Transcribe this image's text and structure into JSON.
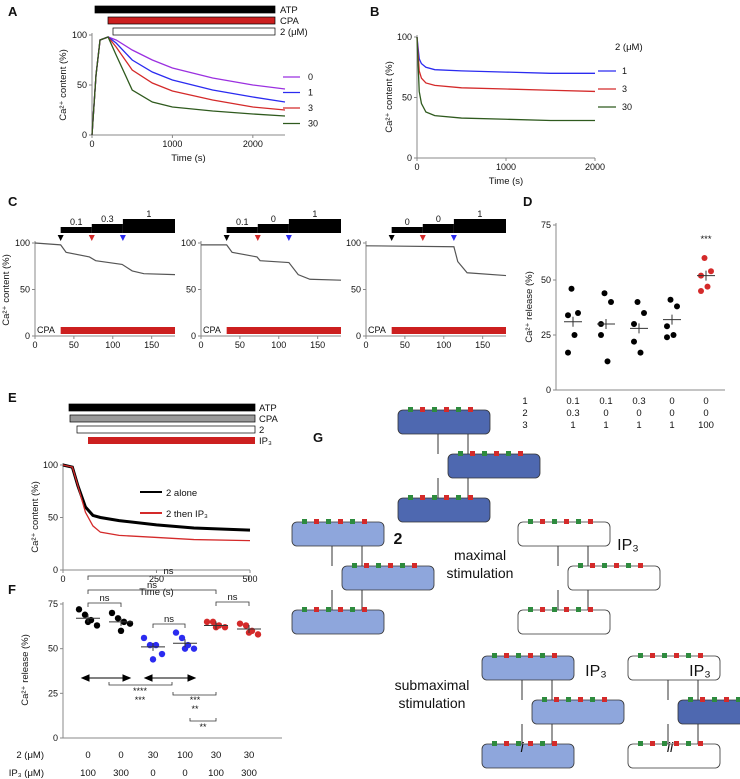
{
  "panels": {
    "A": "A",
    "B": "B",
    "C": "C",
    "D": "D",
    "E": "E",
    "F": "F",
    "G": "G"
  },
  "chart_data": [
    {
      "id": "A",
      "type": "line",
      "xlabel": "Time (s)",
      "ylabel": "Ca2+ content (%)",
      "xlim": [
        0,
        2400
      ],
      "ylim": [
        0,
        100
      ],
      "xticks": [
        "0",
        "1000",
        "2000"
      ],
      "yticks": [
        "0",
        "50",
        "100"
      ],
      "bars": [
        {
          "label": "ATP",
          "color": "#000000"
        },
        {
          "label": "CPA",
          "color": "#cc1f1f"
        },
        {
          "label": "2 (μM)",
          "color": "#ffffff"
        }
      ],
      "legend_title": "",
      "time": [
        0,
        50,
        100,
        200,
        300,
        500,
        750,
        1000,
        1500,
        2000,
        2400
      ],
      "series": [
        {
          "name": "0",
          "color": "#9b30e0",
          "values": [
            0,
            60,
            95,
            98,
            95,
            85,
            75,
            67,
            57,
            50,
            46
          ]
        },
        {
          "name": "1",
          "color": "#2b2bf0",
          "values": [
            0,
            60,
            95,
            98,
            92,
            75,
            63,
            55,
            45,
            38,
            33
          ]
        },
        {
          "name": "3",
          "color": "#d42a2a",
          "values": [
            0,
            60,
            95,
            98,
            88,
            65,
            52,
            44,
            35,
            28,
            25
          ]
        },
        {
          "name": "30",
          "color": "#2f5a1e",
          "values": [
            0,
            60,
            95,
            98,
            80,
            45,
            33,
            28,
            24,
            21,
            19
          ]
        }
      ]
    },
    {
      "id": "B",
      "type": "line",
      "xlabel": "Time (s)",
      "ylabel": "Ca2+ content (%)",
      "xlim": [
        0,
        2000
      ],
      "ylim": [
        0,
        100
      ],
      "xticks": [
        "0",
        "1000",
        "2000"
      ],
      "yticks": [
        "0",
        "50",
        "100"
      ],
      "legend_title": "2 (μM)",
      "time": [
        0,
        25,
        50,
        100,
        200,
        500,
        1000,
        1500,
        2000
      ],
      "series": [
        {
          "name": "1",
          "color": "#2b2bf0",
          "values": [
            100,
            82,
            78,
            75,
            73,
            72,
            71,
            70,
            70
          ]
        },
        {
          "name": "3",
          "color": "#d42a2a",
          "values": [
            100,
            72,
            66,
            62,
            60,
            58,
            57,
            56,
            55
          ]
        },
        {
          "name": "30",
          "color": "#2f5a1e",
          "values": [
            100,
            55,
            45,
            38,
            35,
            33,
            32,
            31,
            31
          ]
        }
      ]
    },
    {
      "id": "C",
      "type": "line",
      "ylabel": "Ca2+ content (%)",
      "xlim": [
        0,
        180
      ],
      "ylim": [
        0,
        100
      ],
      "xticks": [
        "0",
        "50",
        "100",
        "150"
      ],
      "yticks": [
        "0",
        "50",
        "100"
      ],
      "cpa_label": "CPA",
      "subplots": [
        {
          "steps": [
            "0.1",
            "0.3",
            "1"
          ],
          "points": [
            [
              0,
              100
            ],
            [
              33,
              98
            ],
            [
              40,
              90
            ],
            [
              70,
              85
            ],
            [
              78,
              81
            ],
            [
              112,
              77
            ],
            [
              125,
              70
            ],
            [
              140,
              67
            ],
            [
              180,
              66
            ]
          ]
        },
        {
          "steps": [
            "0.1",
            "0",
            "1"
          ],
          "points": [
            [
              0,
              98
            ],
            [
              33,
              98
            ],
            [
              40,
              90
            ],
            [
              72,
              85
            ],
            [
              76,
              81
            ],
            [
              113,
              79
            ],
            [
              125,
              66
            ],
            [
              140,
              61
            ],
            [
              180,
              60
            ]
          ]
        },
        {
          "steps": [
            "0",
            "0",
            "1"
          ],
          "points": [
            [
              0,
              97
            ],
            [
              113,
              96
            ],
            [
              118,
              80
            ],
            [
              130,
              68
            ],
            [
              180,
              65
            ]
          ]
        }
      ]
    },
    {
      "id": "D",
      "type": "scatter",
      "ylabel": "Ca2+ release (%)",
      "ylim": [
        0,
        75
      ],
      "yticks": [
        "0",
        "25",
        "50",
        "75"
      ],
      "row_labels": [
        "1",
        "2",
        "3"
      ],
      "row_colors": [
        "#000000",
        "#cc1f1f",
        "#2b2bf0"
      ],
      "groups": [
        {
          "r1": "0.1",
          "r2": "0.3",
          "r3": "1",
          "color": "#000",
          "values": [
            46,
            35,
            34,
            25,
            17
          ],
          "mean": 31
        },
        {
          "r1": "0.1",
          "r2": "0",
          "r3": "1",
          "color": "#000",
          "values": [
            44,
            40,
            25,
            13,
            30
          ],
          "mean": 30
        },
        {
          "r1": "0.3",
          "r2": "0",
          "r3": "1",
          "color": "#000",
          "values": [
            40,
            35,
            22,
            17,
            30
          ],
          "mean": 28
        },
        {
          "r1": "0",
          "r2": "0",
          "r3": "1",
          "color": "#000",
          "values": [
            41,
            38,
            29,
            25,
            24
          ],
          "mean": 32
        },
        {
          "r1": "0",
          "r2": "0",
          "r3": "100",
          "color": "#d42a2a",
          "values": [
            60,
            54,
            52,
            47,
            45
          ],
          "mean": 52,
          "sig": "***"
        }
      ]
    },
    {
      "id": "E",
      "type": "line",
      "xlabel": "Time (s)",
      "ylabel": "Ca2+ content (%)",
      "xlim": [
        0,
        500
      ],
      "ylim": [
        0,
        100
      ],
      "xticks": [
        "0",
        "250",
        "500"
      ],
      "yticks": [
        "0",
        "50",
        "100"
      ],
      "bars": [
        {
          "label": "ATP",
          "color": "#000000"
        },
        {
          "label": "CPA",
          "color": "#999999"
        },
        {
          "label": "2",
          "color": "#ffffff"
        },
        {
          "label": "IP3",
          "color": "#cc1f1f"
        }
      ],
      "time": [
        0,
        25,
        40,
        60,
        80,
        100,
        150,
        250,
        350,
        500
      ],
      "series": [
        {
          "name": "2 alone",
          "color": "#000000",
          "values": [
            100,
            98,
            80,
            60,
            52,
            50,
            47,
            43,
            40,
            38
          ]
        },
        {
          "name": "2 then IP3",
          "color": "#d42a2a",
          "values": [
            100,
            98,
            80,
            55,
            42,
            36,
            33,
            31,
            29,
            28
          ]
        }
      ]
    },
    {
      "id": "F",
      "type": "scatter",
      "ylabel": "Ca2+ release (%)",
      "ylim": [
        0,
        75
      ],
      "yticks": [
        "0",
        "25",
        "50",
        "75"
      ],
      "row_labels": [
        "2 (μM)",
        "IP3 (μM)"
      ],
      "groups": [
        {
          "c2": "0",
          "ip3": "100",
          "color": "#000",
          "values": [
            72,
            69,
            66,
            63,
            65
          ],
          "mean": 67
        },
        {
          "c2": "0",
          "ip3": "300",
          "color": "#000",
          "values": [
            70,
            67,
            65,
            64,
            60
          ],
          "mean": 65
        },
        {
          "c2": "30",
          "ip3": "0",
          "color": "#2b2bf0",
          "values": [
            56,
            52,
            52,
            47,
            44
          ],
          "mean": 51
        },
        {
          "c2": "100",
          "ip3": "0",
          "color": "#2b2bf0",
          "values": [
            59,
            56,
            52,
            50,
            50
          ],
          "mean": 53
        },
        {
          "c2": "30",
          "ip3": "100",
          "color": "#d42a2a",
          "values": [
            65,
            65,
            63,
            62,
            62
          ],
          "mean": 63
        },
        {
          "c2": "30",
          "ip3": "300",
          "color": "#d42a2a",
          "values": [
            64,
            63,
            60,
            58,
            59
          ],
          "mean": 61
        }
      ],
      "annotations": [
        "ns",
        "ns",
        "ns",
        "ns",
        "ns",
        "ns",
        "****",
        "***",
        "***",
        "**",
        "**"
      ]
    }
  ],
  "diagram": {
    "label_2": "2",
    "label_ip3": "IP3",
    "maximal": [
      "maximal",
      "stimulation"
    ],
    "submaximal": [
      "submaximal",
      "stimulation"
    ],
    "i": "i",
    "ii": "ii"
  }
}
